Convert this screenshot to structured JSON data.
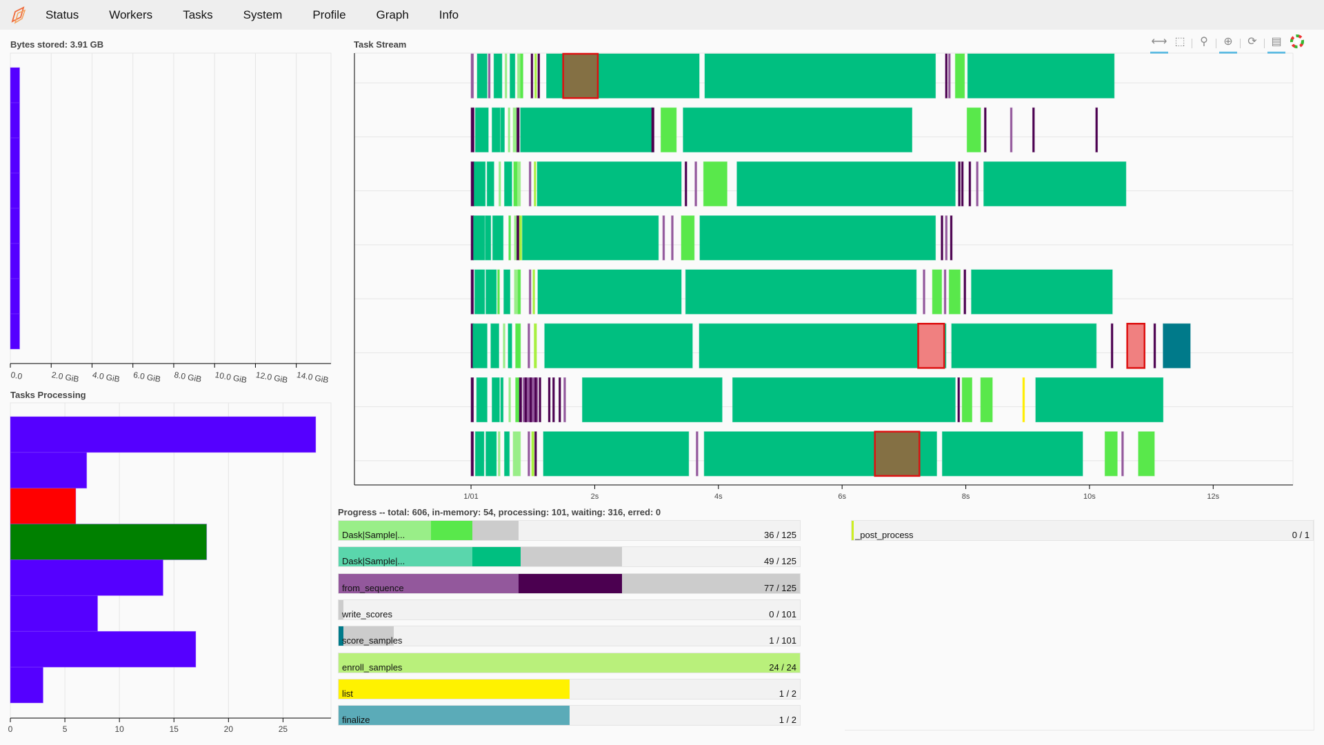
{
  "nav": {
    "items": [
      "Status",
      "Workers",
      "Tasks",
      "System",
      "Profile",
      "Graph",
      "Info"
    ]
  },
  "bytes_stored": {
    "title": "Bytes stored: 3.91 GB",
    "chart_data": {
      "type": "bar",
      "orientation": "horizontal",
      "values_gib": [
        0.455,
        0.455,
        0.455,
        0.455,
        0.455,
        0.455,
        0.455,
        0.455
      ],
      "xlim_gib": [
        0,
        15.7
      ],
      "ticks": [
        "0.0",
        "2.0 GiB",
        "4.0 GiB",
        "6.0 GiB",
        "8.0 GiB",
        "10.0 GiB",
        "12.0 GiB",
        "14.0 GiB"
      ],
      "tick_values": [
        0,
        2,
        4,
        6,
        8,
        10,
        12,
        14
      ],
      "color": "#5500ff",
      "grid": true
    }
  },
  "tasks_processing": {
    "title": "Tasks Processing",
    "chart_data": {
      "type": "bar",
      "orientation": "horizontal",
      "values": [
        28,
        7,
        6,
        18,
        14,
        8,
        17,
        3
      ],
      "colors": [
        "#5500ff",
        "#5500ff",
        "#ff0000",
        "#008000",
        "#5500ff",
        "#5500ff",
        "#5500ff",
        "#5500ff"
      ],
      "xlim": [
        0,
        29.4
      ],
      "ticks": [
        "0",
        "5",
        "10",
        "15",
        "20",
        "25"
      ],
      "tick_values": [
        0,
        5,
        10,
        15,
        20,
        25
      ],
      "grid": true
    }
  },
  "task_stream": {
    "title": "Task Stream",
    "toolbar": [
      "pan-icon",
      "box-zoom-icon",
      "wheel-zoom-icon",
      "reset-zoom-icon",
      "refresh-icon",
      "hover-icon",
      "bokeh-logo"
    ],
    "chart_data": {
      "type": "gantt",
      "xlim_s": [
        -1.885,
        13.29
      ],
      "ticks": [
        "1/01",
        "2s",
        "4s",
        "6s",
        "8s",
        "10s",
        "12s"
      ],
      "tick_values": [
        0,
        2,
        4,
        6,
        8,
        10,
        12
      ],
      "palette": {
        "g": "#00bf80",
        "lg": "#59e84b",
        "pg": "#99ee88",
        "yg": "#a8f040",
        "p": "#4b0050",
        "pl": "#93589c",
        "br": "#847044",
        "sa": "#f08080",
        "tl": "#007a8a",
        "y": "#ffee00"
      },
      "rows": [
        [
          [
            0,
            0.04,
            "pl"
          ],
          [
            0.1,
            0.26,
            "g"
          ],
          [
            0.28,
            0.31,
            "pl"
          ],
          [
            0.37,
            0.5,
            "g"
          ],
          [
            0.55,
            0.58,
            "pg"
          ],
          [
            0.63,
            0.71,
            "g"
          ],
          [
            0.75,
            0.8,
            "pg"
          ],
          [
            0.8,
            0.84,
            "lg"
          ],
          [
            0.97,
            1.0,
            "p"
          ],
          [
            1.03,
            1.06,
            "yg"
          ],
          [
            1.08,
            1.11,
            "p"
          ],
          [
            1.22,
            3.69,
            "g"
          ],
          [
            1.49,
            2.05,
            "br",
            "x"
          ],
          [
            3.78,
            7.51,
            "g"
          ],
          [
            7.67,
            7.7,
            "p"
          ],
          [
            7.72,
            7.75,
            "pl"
          ],
          [
            7.83,
            7.98,
            "lg"
          ],
          [
            8.03,
            10.4,
            "g"
          ]
        ],
        [
          [
            0,
            0.05,
            "p"
          ],
          [
            0.07,
            0.28,
            "g"
          ],
          [
            0.34,
            0.47,
            "g"
          ],
          [
            0.48,
            0.54,
            "g"
          ],
          [
            0.6,
            0.63,
            "pg"
          ],
          [
            0.68,
            0.74,
            "pg"
          ],
          [
            0.74,
            0.78,
            "p"
          ],
          [
            0.8,
            2.94,
            "g"
          ],
          [
            2.92,
            2.96,
            "p"
          ],
          [
            3.07,
            3.32,
            "lg"
          ],
          [
            3.43,
            7.13,
            "g"
          ],
          [
            8.02,
            8.24,
            "lg"
          ],
          [
            8.3,
            8.33,
            "p"
          ],
          [
            8.72,
            8.75,
            "pl"
          ],
          [
            9.08,
            9.11,
            "p"
          ],
          [
            10.1,
            10.13,
            "p"
          ]
        ],
        [
          [
            0,
            0.05,
            "p"
          ],
          [
            0.05,
            0.23,
            "g"
          ],
          [
            0.26,
            0.37,
            "g"
          ],
          [
            0.45,
            0.48,
            "pg"
          ],
          [
            0.54,
            0.66,
            "g"
          ],
          [
            0.69,
            0.75,
            "lg"
          ],
          [
            0.75,
            0.8,
            "pg"
          ],
          [
            0.94,
            0.97,
            "pl"
          ],
          [
            1.02,
            1.05,
            "yg"
          ],
          [
            1.07,
            3.4,
            "g"
          ],
          [
            3.46,
            3.49,
            "p"
          ],
          [
            3.62,
            3.65,
            "pl"
          ],
          [
            3.76,
            4.14,
            "lg"
          ],
          [
            4.3,
            7.83,
            "g"
          ],
          [
            7.88,
            7.91,
            "p"
          ],
          [
            7.93,
            7.96,
            "p"
          ],
          [
            8.05,
            8.08,
            "p"
          ],
          [
            8.17,
            8.2,
            "pl"
          ],
          [
            8.29,
            10.59,
            "g"
          ]
        ],
        [
          [
            0,
            0.04,
            "p"
          ],
          [
            0.04,
            0.22,
            "g"
          ],
          [
            0.23,
            0.32,
            "g"
          ],
          [
            0.35,
            0.52,
            "g"
          ],
          [
            0.61,
            0.64,
            "lg"
          ],
          [
            0.7,
            0.74,
            "pg"
          ],
          [
            0.74,
            0.78,
            "p"
          ],
          [
            0.78,
            0.82,
            "yg"
          ],
          [
            0.83,
            3.03,
            "g"
          ],
          [
            3.1,
            3.13,
            "pl"
          ],
          [
            3.24,
            3.27,
            "pl"
          ],
          [
            3.4,
            3.61,
            "lg"
          ],
          [
            3.7,
            7.51,
            "g"
          ],
          [
            7.6,
            7.63,
            "p"
          ],
          [
            7.67,
            7.7,
            "pl"
          ],
          [
            7.75,
            7.78,
            "p"
          ]
        ],
        [
          [
            0,
            0.04,
            "p"
          ],
          [
            0.06,
            0.22,
            "g"
          ],
          [
            0.24,
            0.41,
            "g"
          ],
          [
            0.43,
            0.46,
            "lg"
          ],
          [
            0.53,
            0.63,
            "g"
          ],
          [
            0.7,
            0.76,
            "pg"
          ],
          [
            0.76,
            0.8,
            "lg"
          ],
          [
            0.94,
            0.97,
            "pl"
          ],
          [
            1.0,
            1.03,
            "yg"
          ],
          [
            1.08,
            3.4,
            "g"
          ],
          [
            3.47,
            7.2,
            "g"
          ],
          [
            7.31,
            7.34,
            "pl"
          ],
          [
            7.46,
            7.61,
            "lg"
          ],
          [
            7.65,
            7.68,
            "pl"
          ],
          [
            7.73,
            7.91,
            "lg"
          ],
          [
            7.97,
            8.0,
            "p"
          ],
          [
            8.09,
            10.37,
            "g"
          ]
        ],
        [
          [
            0,
            0.04,
            "p"
          ],
          [
            0.03,
            0.26,
            "g"
          ],
          [
            0.32,
            0.45,
            "g"
          ],
          [
            0.52,
            0.55,
            "pg"
          ],
          [
            0.6,
            0.66,
            "g"
          ],
          [
            0.72,
            0.8,
            "lg"
          ],
          [
            0.92,
            0.95,
            "pl"
          ],
          [
            1.02,
            1.06,
            "yg"
          ],
          [
            1.19,
            3.58,
            "g"
          ],
          [
            3.69,
            7.68,
            "g"
          ],
          [
            7.23,
            7.65,
            "sa",
            "x"
          ],
          [
            7.77,
            10.11,
            "g"
          ],
          [
            10.35,
            10.38,
            "p"
          ],
          [
            10.61,
            10.89,
            "sa",
            "x"
          ],
          [
            11.04,
            11.07,
            "p"
          ],
          [
            11.19,
            11.63,
            "tl"
          ]
        ],
        [
          [
            0,
            0.04,
            "p"
          ],
          [
            0.09,
            0.26,
            "g"
          ],
          [
            0.34,
            0.46,
            "g"
          ],
          [
            0.48,
            0.52,
            "g"
          ],
          [
            0.61,
            0.64,
            "pg"
          ],
          [
            0.72,
            0.78,
            "lg"
          ],
          [
            0.78,
            0.82,
            "p"
          ],
          [
            0.84,
            1.08,
            "pl"
          ],
          [
            0.87,
            0.9,
            "p"
          ],
          [
            0.95,
            0.98,
            "p"
          ],
          [
            1.03,
            1.06,
            "p"
          ],
          [
            1.1,
            1.13,
            "p"
          ],
          [
            1.25,
            1.28,
            "p"
          ],
          [
            1.32,
            1.35,
            "p"
          ],
          [
            1.42,
            1.45,
            "p"
          ],
          [
            1.5,
            1.53,
            "pl"
          ],
          [
            1.8,
            4.06,
            "g"
          ],
          [
            4.23,
            7.83,
            "g"
          ],
          [
            7.87,
            7.9,
            "p"
          ],
          [
            7.94,
            8.1,
            "lg"
          ],
          [
            8.24,
            8.43,
            "lg"
          ],
          [
            8.92,
            8.95,
            "y"
          ],
          [
            9.13,
            11.19,
            "g"
          ]
        ],
        [
          [
            0,
            0.04,
            "p"
          ],
          [
            0.07,
            0.21,
            "g"
          ],
          [
            0.24,
            0.41,
            "g"
          ],
          [
            0.44,
            0.47,
            "pg"
          ],
          [
            0.54,
            0.62,
            "g"
          ],
          [
            0.68,
            0.8,
            "pg"
          ],
          [
            0.92,
            0.95,
            "pl"
          ],
          [
            0.98,
            1.02,
            "yg"
          ],
          [
            1.03,
            1.06,
            "p"
          ],
          [
            1.17,
            3.52,
            "g"
          ],
          [
            3.64,
            3.67,
            "pl"
          ],
          [
            3.77,
            7.53,
            "g"
          ],
          [
            6.53,
            7.25,
            "br",
            "x"
          ],
          [
            7.62,
            9.89,
            "g"
          ],
          [
            10.25,
            10.45,
            "lg"
          ],
          [
            10.52,
            10.55,
            "pl"
          ],
          [
            10.79,
            11.05,
            "lg"
          ]
        ]
      ]
    }
  },
  "progress": {
    "title": "Progress -- total: 606, in-memory: 54, processing: 101, waiting: 316, erred: 0",
    "bars": [
      {
        "name": "Dask|Sample|...",
        "count": "36 / 125",
        "segments": [
          [
            0.2,
            "#99ee88"
          ],
          [
            0.29,
            "#59e84b"
          ],
          [
            0.39,
            "#cccccc"
          ]
        ]
      },
      {
        "name": "Dask|Sample|...",
        "count": "49 / 125",
        "segments": [
          [
            0.29,
            "#5ad6ac"
          ],
          [
            0.395,
            "#00bf80"
          ],
          [
            0.615,
            "#cccccc"
          ]
        ]
      },
      {
        "name": "from_sequence",
        "count": "77 / 125",
        "segments": [
          [
            0.39,
            "#93589c"
          ],
          [
            0.615,
            "#4b0050"
          ],
          [
            1.0,
            "#cccccc"
          ]
        ]
      },
      {
        "name": "write_scores",
        "count": "0 / 101",
        "segments": [
          [
            0.01,
            "#cccccc"
          ]
        ]
      },
      {
        "name": "score_samples",
        "count": "1 / 101",
        "segments": [
          [
            0.01,
            "#007a8a"
          ],
          [
            0.12,
            "#cccccc"
          ]
        ]
      },
      {
        "name": "enroll_samples",
        "count": "24 / 24",
        "segments": [
          [
            1.0,
            "#b9f07b"
          ]
        ]
      },
      {
        "name": "list",
        "count": "1 / 2",
        "segments": [
          [
            0.5,
            "#fff200"
          ]
        ]
      },
      {
        "name": "finalize",
        "count": "1 / 2",
        "segments": [
          [
            0.5,
            "#5babb8"
          ]
        ]
      },
      {
        "name": "_post_process",
        "count": "0 / 1",
        "segments": [
          [
            0.003,
            "#ccee22"
          ]
        ]
      }
    ]
  }
}
